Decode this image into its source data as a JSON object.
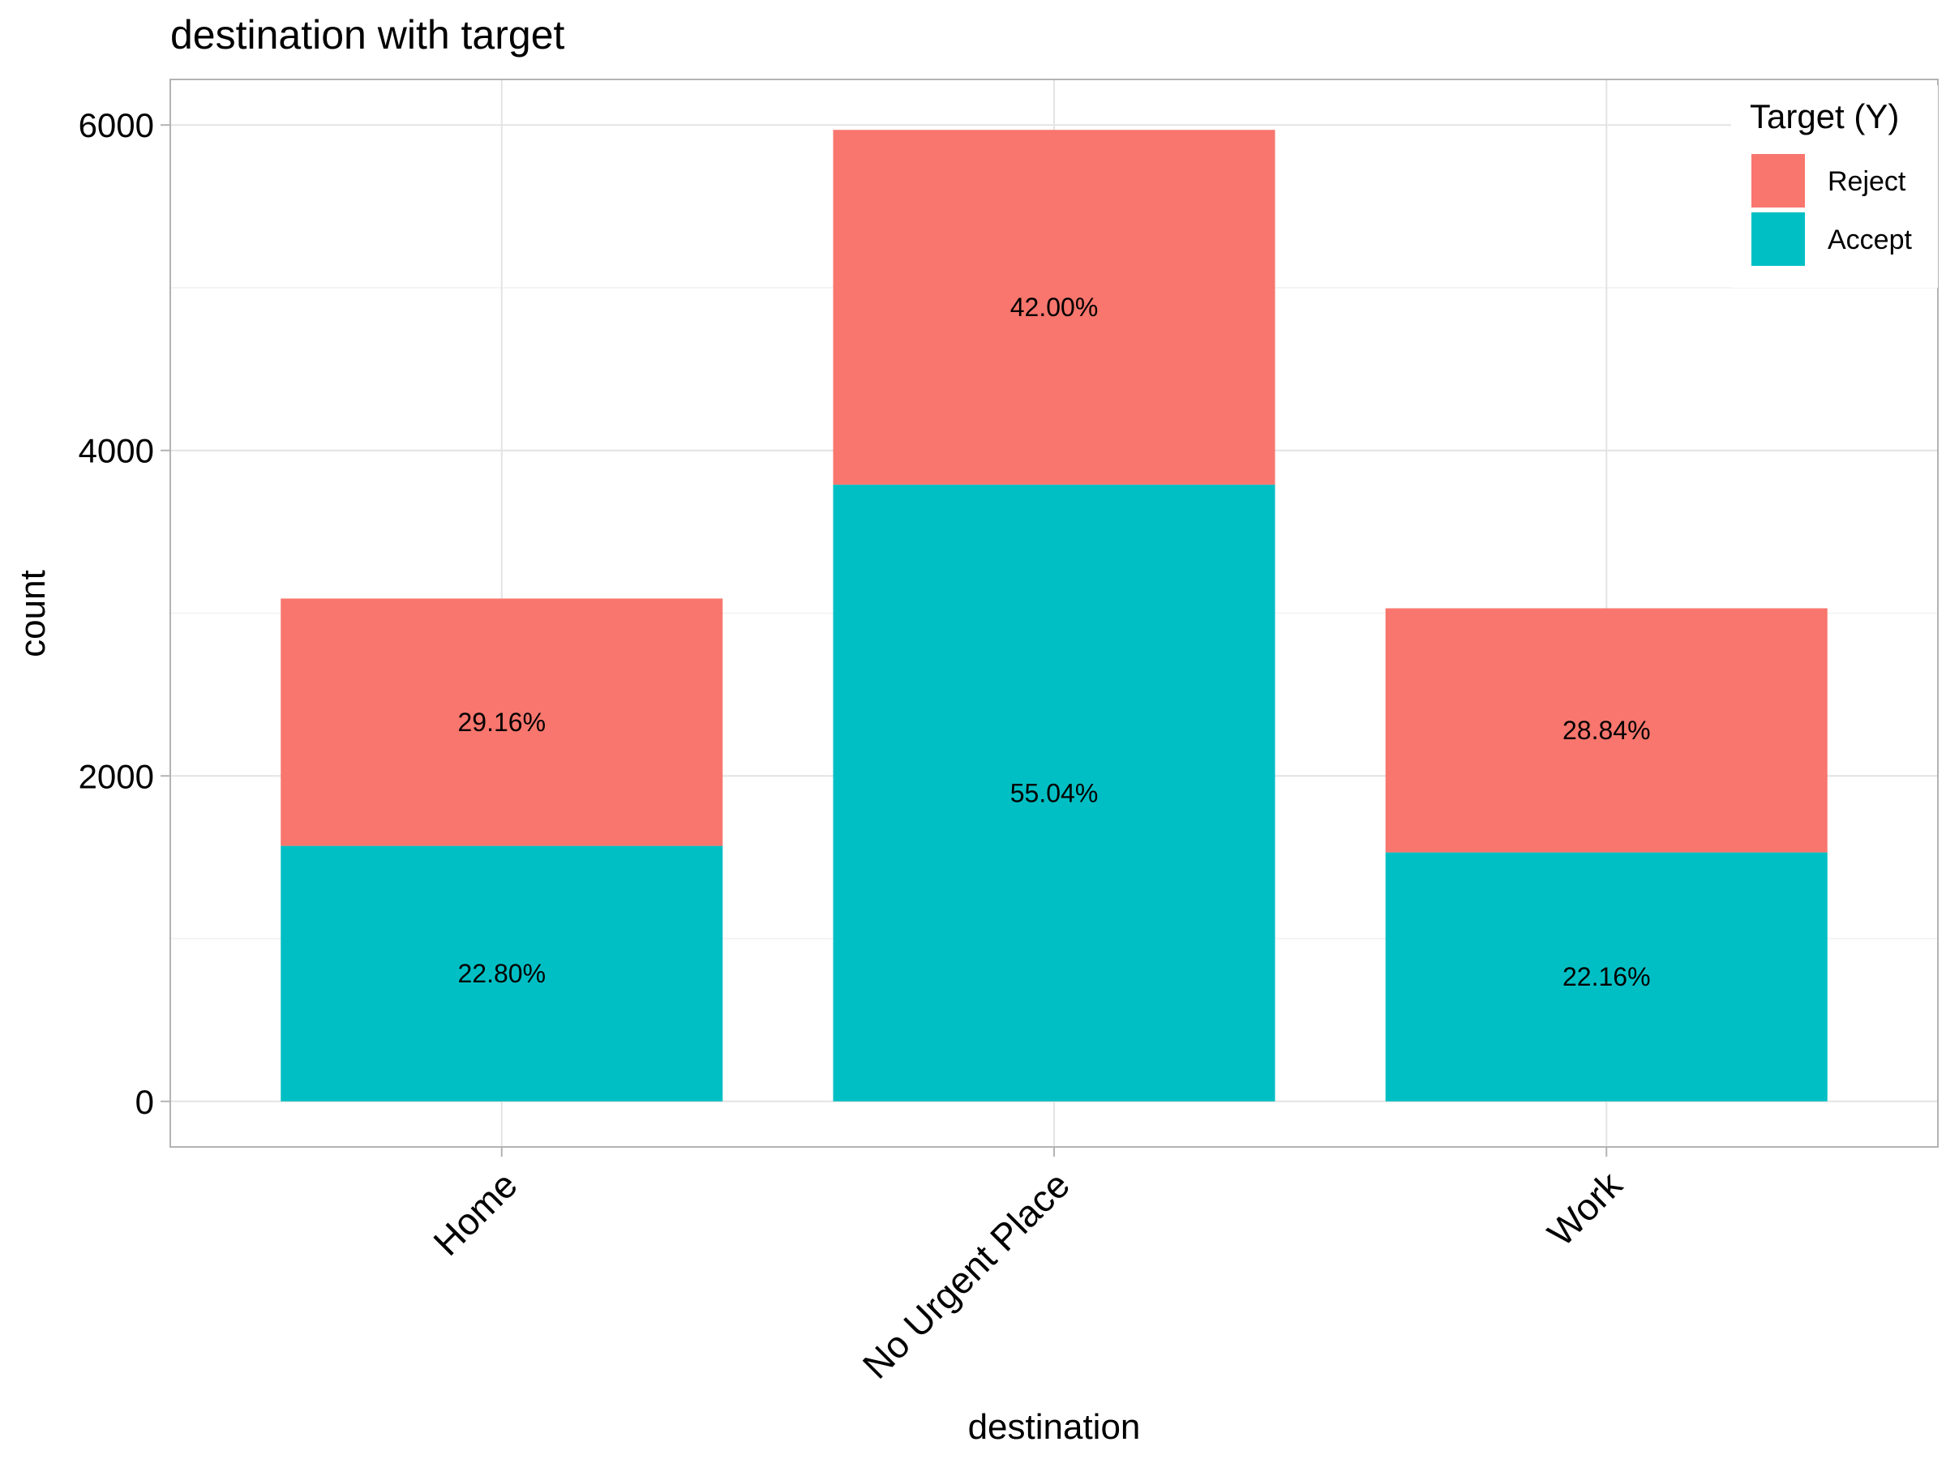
{
  "chart_data": {
    "type": "bar",
    "stacked": true,
    "title": "destination with target",
    "xlabel": "destination",
    "ylabel": "count",
    "categories": [
      "Home",
      "No Urgent Place",
      "Work"
    ],
    "series": [
      {
        "name": "Reject",
        "color": "#F8766D",
        "values": [
          1520,
          2180,
          1500
        ],
        "labels": [
          "29.16%",
          "42.00%",
          "28.84%"
        ]
      },
      {
        "name": "Accept",
        "color": "#00BFC4",
        "values": [
          1570,
          3790,
          1530
        ],
        "labels": [
          "22.80%",
          "55.04%",
          "22.16%"
        ]
      }
    ],
    "ylim": [
      -280,
      6280
    ],
    "yticks": [
      0,
      2000,
      4000,
      6000
    ],
    "ytick_labels": [
      "0",
      "2000",
      "4000",
      "6000"
    ],
    "grid": true,
    "legend": {
      "title": "Target (Y)",
      "placement": "top-right"
    }
  }
}
